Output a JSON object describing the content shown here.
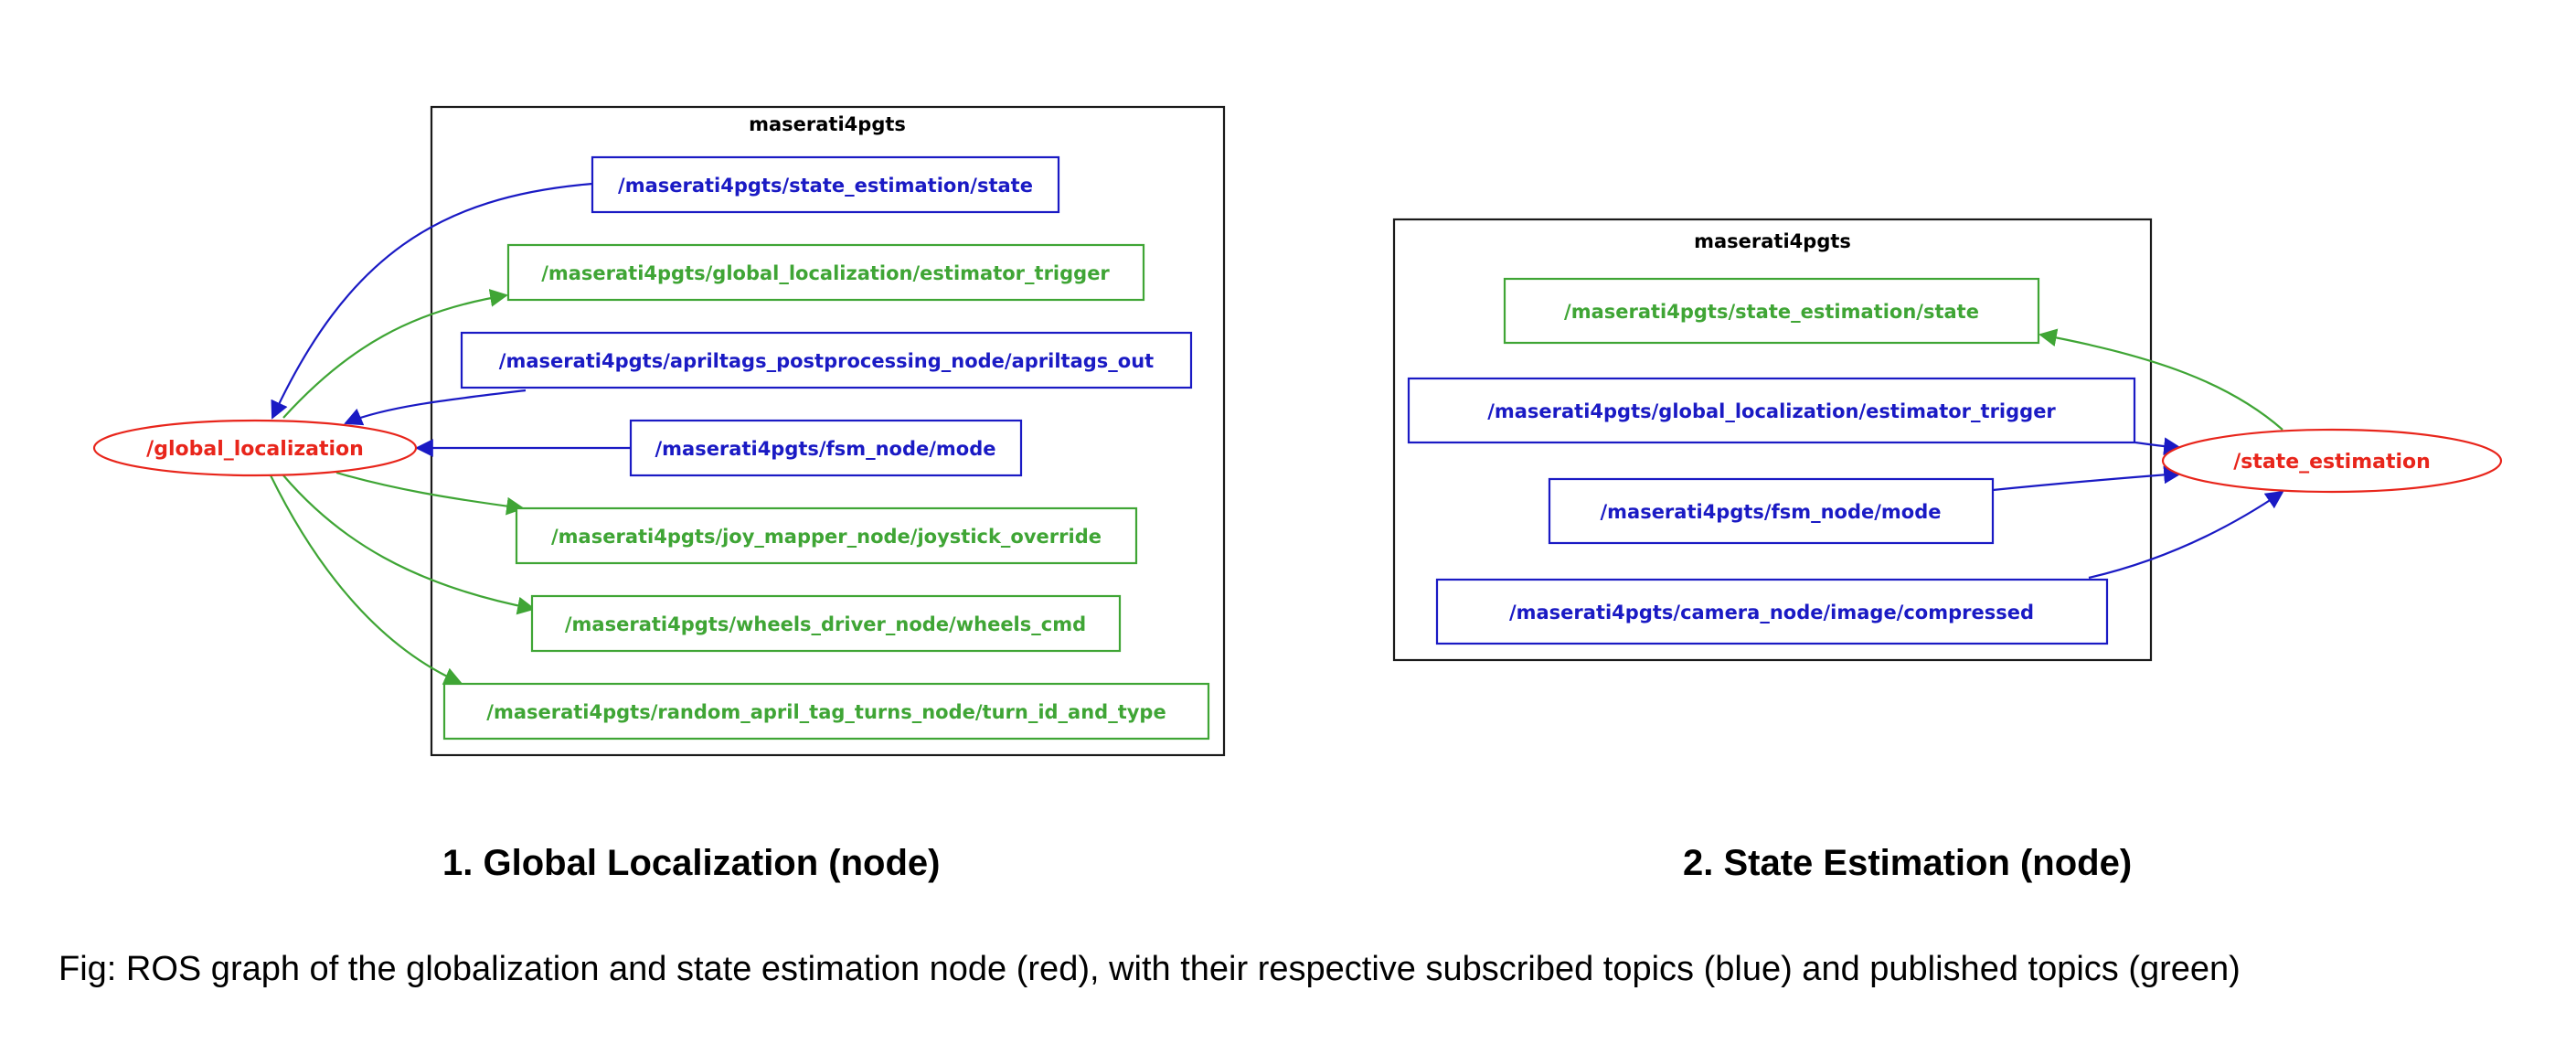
{
  "colors": {
    "node": "#e8251b",
    "subscribed": "#1a1ac4",
    "published": "#3fa535",
    "cluster": "#1a1a1a"
  },
  "graph1": {
    "cluster_label": "maserati4pgts",
    "node": "/global_localization",
    "topics": [
      {
        "label": "/maserati4pgts/state_estimation/state",
        "kind": "subscribed"
      },
      {
        "label": "/maserati4pgts/global_localization/estimator_trigger",
        "kind": "published"
      },
      {
        "label": "/maserati4pgts/apriltags_postprocessing_node/apriltags_out",
        "kind": "subscribed"
      },
      {
        "label": "/maserati4pgts/fsm_node/mode",
        "kind": "subscribed"
      },
      {
        "label": "/maserati4pgts/joy_mapper_node/joystick_override",
        "kind": "published"
      },
      {
        "label": "/maserati4pgts/wheels_driver_node/wheels_cmd",
        "kind": "published"
      },
      {
        "label": "/maserati4pgts/random_april_tag_turns_node/turn_id_and_type",
        "kind": "published"
      }
    ],
    "subtitle": "1. Global Localization (node)"
  },
  "graph2": {
    "cluster_label": "maserati4pgts",
    "node": "/state_estimation",
    "topics": [
      {
        "label": "/maserati4pgts/state_estimation/state",
        "kind": "published"
      },
      {
        "label": "/maserati4pgts/global_localization/estimator_trigger",
        "kind": "subscribed"
      },
      {
        "label": "/maserati4pgts/fsm_node/mode",
        "kind": "subscribed"
      },
      {
        "label": "/maserati4pgts/camera_node/image/compressed",
        "kind": "subscribed"
      }
    ],
    "subtitle": "2. State Estimation (node)"
  },
  "caption": "Fig: ROS graph of the globalization and state estimation node (red), with their respective subscribed topics (blue) and published topics (green)"
}
